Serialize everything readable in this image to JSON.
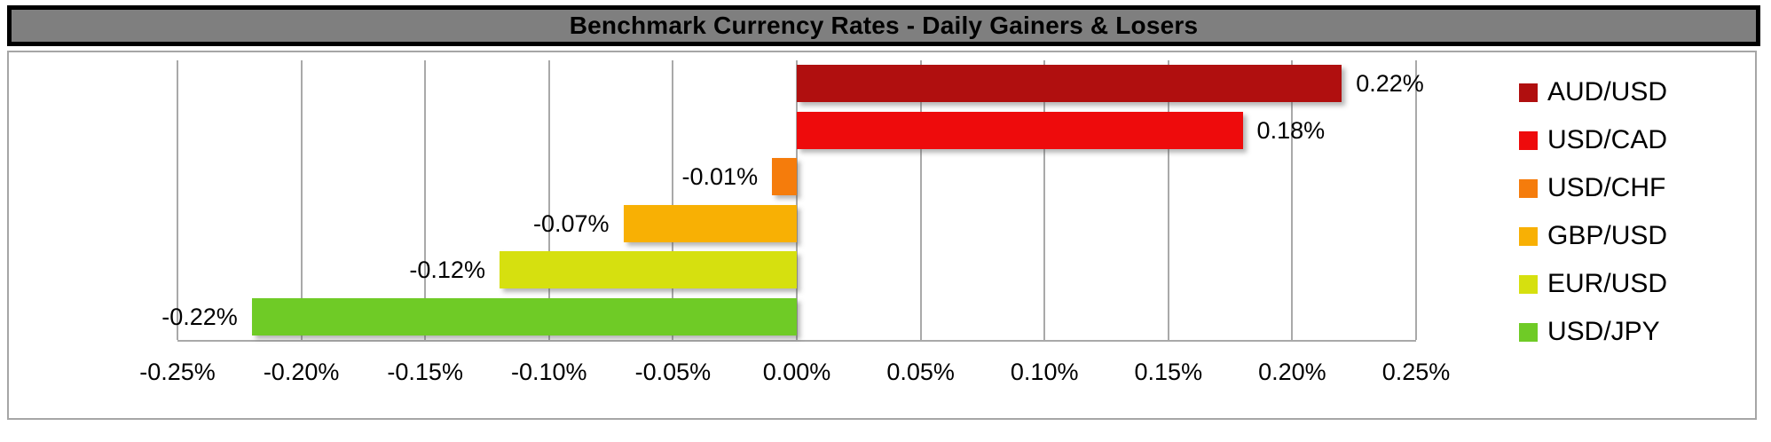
{
  "title": "Benchmark Currency Rates - Daily Gainers & Losers",
  "chart_data": {
    "type": "bar",
    "orientation": "horizontal",
    "title": "Benchmark Currency Rates - Daily Gainers & Losers",
    "categories": [
      "AUD/USD",
      "USD/CAD",
      "USD/CHF",
      "GBP/USD",
      "EUR/USD",
      "USD/JPY"
    ],
    "values": [
      0.22,
      0.18,
      -0.01,
      -0.07,
      -0.12,
      -0.22
    ],
    "value_labels": [
      "0.22%",
      "0.18%",
      "-0.01%",
      "-0.07%",
      "-0.12%",
      "-0.22%"
    ],
    "colors": [
      "#b00f0f",
      "#ee0b0c",
      "#f57c0c",
      "#f8b004",
      "#d6e00f",
      "#6fcb26"
    ],
    "xlabel": "",
    "ylabel": "",
    "xlim": [
      -0.25,
      0.25
    ],
    "x_ticks": [
      "-0.25%",
      "-0.20%",
      "-0.15%",
      "-0.10%",
      "-0.05%",
      "0.00%",
      "0.05%",
      "0.10%",
      "0.15%",
      "0.20%",
      "0.25%"
    ],
    "grid": true,
    "legend_position": "right",
    "title_bar_color": "#7f7f7f"
  }
}
